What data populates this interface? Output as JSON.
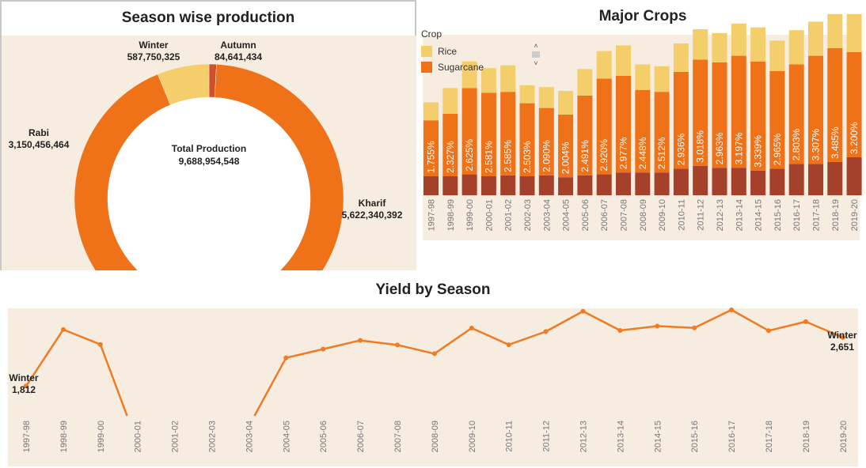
{
  "colors": {
    "rabi": "#ef7118",
    "kharif": "#ef7118",
    "winter": "#f3ce6b",
    "autumn": "#d0502a",
    "rice": "#f3ce6b",
    "sugarcane": "#ef7118",
    "other": "#a5402a",
    "line": "#ef7b22",
    "panel_bg": "#f6ece0"
  },
  "donut": {
    "title": "Season wise production",
    "center_label": "Total Production",
    "center_value": "9,688,954,548",
    "labels": [
      {
        "name": "Winter",
        "value": "587,750,325"
      },
      {
        "name": "Autumn",
        "value": "84,641,434"
      },
      {
        "name": "Rabi",
        "value": "3,150,456,464"
      },
      {
        "name": "Kharif",
        "value": "5,622,340,392"
      }
    ]
  },
  "crops": {
    "title": "Major Crops",
    "legend_title": "Crop",
    "legend_items": [
      {
        "name": "Rice",
        "color_key": "rice"
      },
      {
        "name": "Sugarcane",
        "color_key": "sugarcane"
      }
    ],
    "scroll_up": "˄",
    "scroll_down": "˅"
  },
  "yield": {
    "title": "Yield by Season",
    "start_label_name": "Winter",
    "start_label_value": "1,812",
    "end_label_name": "Winter",
    "end_label_value": "2,651"
  },
  "chart_data": [
    {
      "type": "pie",
      "title": "Season wise production",
      "categories": [
        "Winter",
        "Autumn",
        "Rabi",
        "Kharif"
      ],
      "values": [
        587750325,
        84641434,
        3150456464,
        5622340392
      ],
      "total": 9688954548
    },
    {
      "type": "bar",
      "title": "Major Crops",
      "categories": [
        "1997-98",
        "1998-99",
        "1999-00",
        "2000-01",
        "2001-02",
        "2002-03",
        "2003-04",
        "2004-05",
        "2005-06",
        "2006-07",
        "2007-08",
        "2008-09",
        "2009-10",
        "2010-11",
        "2011-12",
        "2012-13",
        "2013-14",
        "2014-15",
        "2015-16",
        "2016-17",
        "2017-18",
        "2018-19",
        "2019-20"
      ],
      "series": [
        {
          "name": "Rice",
          "values": [
            19,
            27,
            28,
            26,
            28,
            19,
            22,
            25,
            28,
            29,
            32,
            27,
            27,
            30,
            32,
            31,
            34,
            36,
            32,
            36,
            36,
            36,
            40
          ]
        },
        {
          "name": "Sugarcane",
          "values": [
            59,
            66,
            91,
            88,
            88,
            77,
            71,
            66,
            84,
            101,
            102,
            87,
            85,
            102,
            112,
            111,
            118,
            115,
            103,
            105,
            114,
            120,
            111
          ]
        },
        {
          "name": "",
          "values": [
            20,
            20,
            22,
            20,
            21,
            20,
            21,
            19,
            21,
            22,
            24,
            24,
            24,
            28,
            31,
            29,
            29,
            26,
            28,
            33,
            33,
            35,
            40
          ]
        }
      ],
      "data_labels": [
        "1.755%",
        "2.327%",
        "2.625%",
        "2.581%",
        "2.585%",
        "2.503%",
        "2.090%",
        "2.004%",
        "2.491%",
        "2.920%",
        "2.977%",
        "2.448%",
        "2.512%",
        "2.936%",
        "3.018%",
        "2.963%",
        "3.197%",
        "3.339%",
        "2.965%",
        "2.803%",
        "3.307%",
        "3.485%",
        "3.200%"
      ],
      "stacked": true,
      "legend": "top-left",
      "grid": false
    },
    {
      "type": "line",
      "title": "Yield by Season",
      "x": [
        "1997-98",
        "1998-99",
        "1999-00",
        "2000-01",
        "2001-02",
        "2002-03",
        "2003-04",
        "2004-05",
        "2005-06",
        "2006-07",
        "2007-08",
        "2008-09",
        "2009-10",
        "2010-11",
        "2011-12",
        "2012-13",
        "2013-14",
        "2014-15",
        "2015-16",
        "2016-17",
        "2017-18",
        "2018-19",
        "2019-20"
      ],
      "series": [
        {
          "name": "Winter",
          "values": [
            1812,
            2787,
            2530,
            null,
            null,
            null,
            null,
            2298,
            2449,
            2600,
            2521,
            2370,
            2813,
            2525,
            2753,
            3103,
            2772,
            2847,
            2816,
            3127,
            2768,
            2924,
            2651
          ]
        }
      ],
      "annotations": [
        {
          "x": "1997-98",
          "text": "Winter 1,812"
        },
        {
          "x": "2019-20",
          "text": "Winter 2,651"
        }
      ],
      "grid": false
    }
  ]
}
